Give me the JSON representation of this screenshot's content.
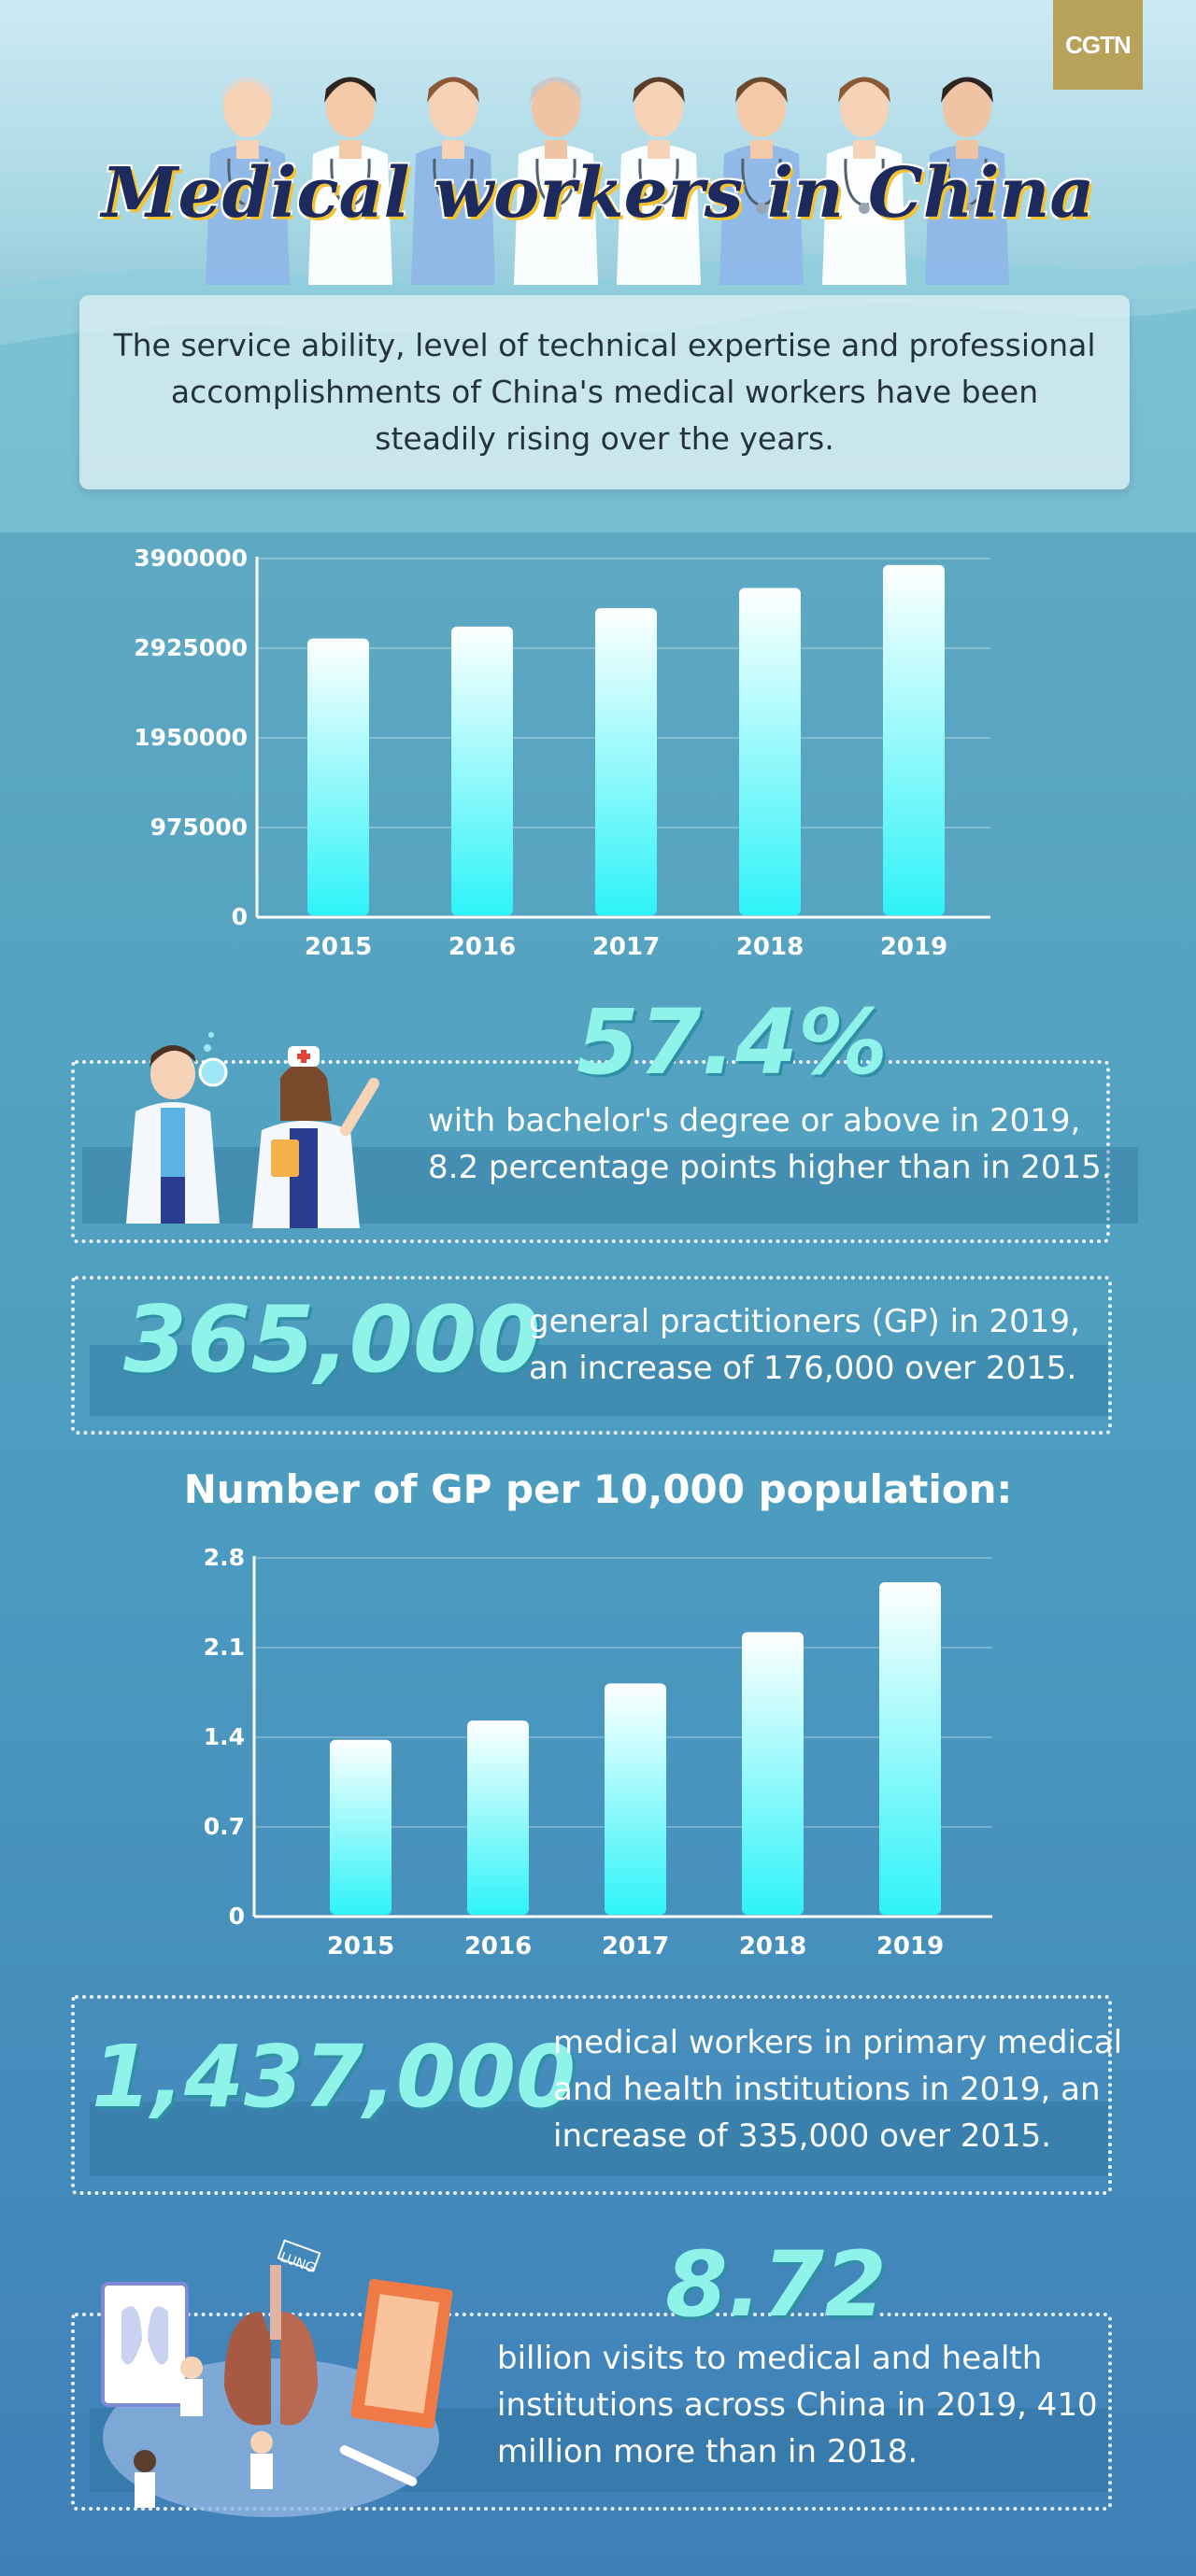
{
  "brand": {
    "logo_text": "CGTN"
  },
  "header": {
    "title": "Medical workers in China"
  },
  "intro": {
    "text": "The service ability, level of technical expertise and professional accomplishments of China's medical workers have been steadily rising over the years."
  },
  "chart_data": [
    {
      "type": "bar",
      "title": "",
      "categories": [
        "2015",
        "2016",
        "2017",
        "2018",
        "2019"
      ],
      "values": [
        3030000,
        3160000,
        3360000,
        3580000,
        3830000
      ],
      "ylim": [
        0,
        3900000
      ],
      "yticks": [
        "3900000",
        "2925000",
        "1950000",
        "975000",
        "0"
      ],
      "grid": true
    },
    {
      "type": "bar",
      "title": "Number of GP per 10,000 population:",
      "categories": [
        "2015",
        "2016",
        "2017",
        "2018",
        "2019"
      ],
      "values": [
        1.38,
        1.53,
        1.82,
        2.22,
        2.61
      ],
      "ylim": [
        0,
        2.8
      ],
      "yticks": [
        "2.8",
        "2.1",
        "1.4",
        "0.7",
        "0"
      ],
      "grid": true
    }
  ],
  "stats": {
    "bachelor": {
      "value": "57.4%",
      "text_line1": "with bachelor's degree or above in 2019,",
      "text_line2": "8.2 percentage points higher than in 2015."
    },
    "gp": {
      "value": "365,000",
      "text_line1": "general practitioners (GP) in 2019,",
      "text_line2": "an increase of 176,000 over 2015."
    },
    "primary": {
      "value": "1,437,000",
      "text_line1": "medical workers in primary medical",
      "text_line2": "and health institutions in 2019, an",
      "text_line3": "increase of 335,000 over 2015."
    },
    "visits": {
      "value": "8.72",
      "text_line1": "billion visits to medical and health",
      "text_line2": "institutions across China in 2019, 410",
      "text_line3": "million more than in 2018."
    }
  },
  "illustration": {
    "lung_label": "LUNG"
  },
  "colors": {
    "bar_top": "#ffffff",
    "bar_bottom": "#2ef3f8",
    "accent_number": "#8ff3ea",
    "title_navy": "#1d2a5e",
    "logo_gold": "#b8a25a"
  },
  "icons": [
    "doctor-figures",
    "scientist-illustration",
    "lung-lab-illustration"
  ]
}
